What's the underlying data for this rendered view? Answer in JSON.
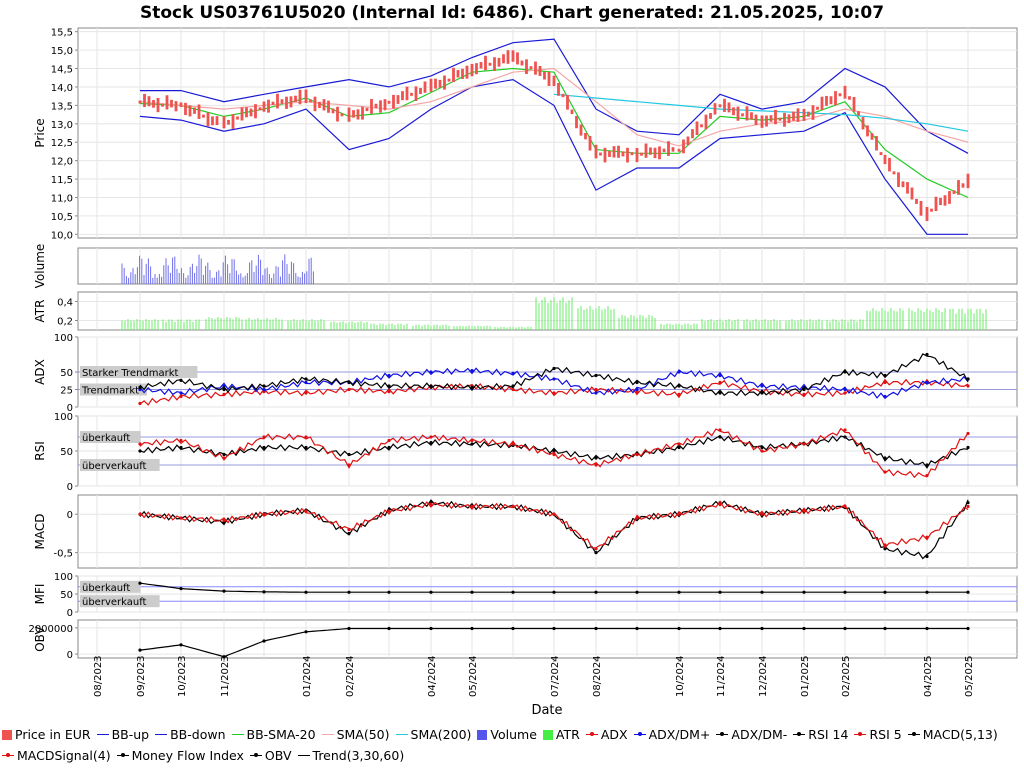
{
  "title": "Stock US03761U5020 (Internal Id: 6486). Chart generated: 21.05.2025, 10:07",
  "x_axis": {
    "label": "Date",
    "ticks": [
      "08/2023",
      "09/2023",
      "10/2023",
      "11/2023",
      "01/2024",
      "02/2024",
      "04/2024",
      "05/2024",
      "07/2024",
      "08/2024",
      "10/2024",
      "11/2024",
      "12/2024",
      "01/2025",
      "02/2025",
      "04/2025",
      "05/2025"
    ]
  },
  "panels": {
    "price": {
      "ylabel": "Price",
      "ticks": [
        "15,5",
        "15,0",
        "14,5",
        "14,0",
        "13,5",
        "13,0",
        "12,5",
        "12,0",
        "11,5",
        "11,0",
        "10,5",
        "10,0"
      ]
    },
    "volume": {
      "ylabel": "Volume"
    },
    "atr": {
      "ylabel": "ATR",
      "ticks": [
        "0,4",
        "0,2"
      ]
    },
    "adx": {
      "ylabel": "ADX",
      "ticks": [
        "100",
        "50",
        "25",
        "0"
      ],
      "annotations": [
        "Starker Trendmarkt",
        "Trendmarkt"
      ]
    },
    "rsi": {
      "ylabel": "RSI",
      "ticks": [
        "100",
        "50",
        "0"
      ],
      "annotations": [
        "überkauft",
        "überverkauft"
      ]
    },
    "macd": {
      "ylabel": "MACD",
      "ticks": [
        "0",
        "-0,5"
      ]
    },
    "mfi": {
      "ylabel": "MFI",
      "ticks": [
        "100",
        "50",
        "0"
      ],
      "annotations": [
        "überkauft",
        "überverkauft"
      ]
    },
    "obv": {
      "ylabel": "OBV",
      "ticks": [
        "2000000",
        "0"
      ]
    }
  },
  "legend": [
    {
      "label": "Price in EUR",
      "type": "box",
      "color": "#ef5350"
    },
    {
      "label": "BB-up",
      "type": "line",
      "color": "#1a1ad6"
    },
    {
      "label": "BB-down",
      "type": "line",
      "color": "#1a1ad6"
    },
    {
      "label": "BB-SMA-20",
      "type": "line",
      "color": "#22cc22"
    },
    {
      "label": "SMA(50)",
      "type": "line",
      "color": "#f4a6a6"
    },
    {
      "label": "SMA(200)",
      "type": "line",
      "color": "#22c8e0"
    },
    {
      "label": "Volume",
      "type": "box",
      "color": "#5555ee"
    },
    {
      "label": "ATR",
      "type": "box",
      "color": "#44ee44"
    },
    {
      "label": "ADX",
      "type": "dotline",
      "color": "#e01010"
    },
    {
      "label": "ADX/DM+",
      "type": "dotline",
      "color": "#1010e0"
    },
    {
      "label": "ADX/DM-",
      "type": "dotline",
      "color": "#000000"
    },
    {
      "label": "RSI 14",
      "type": "dotline",
      "color": "#000000"
    },
    {
      "label": "RSI 5",
      "type": "dotline",
      "color": "#e01010"
    },
    {
      "label": "MACD(5,13)",
      "type": "dotline",
      "color": "#000000"
    },
    {
      "label": "MACDSignal(4)",
      "type": "dotline",
      "color": "#e01010"
    },
    {
      "label": "Money Flow Index",
      "type": "dotline",
      "color": "#000000"
    },
    {
      "label": "OBV",
      "type": "dotline",
      "color": "#000000"
    },
    {
      "label": "Trend(3,30,60)",
      "type": "line",
      "color": "#000000"
    }
  ],
  "chart_data": [
    {
      "type": "line",
      "panel": "price",
      "ylabel": "Price",
      "ylim": [
        9.9,
        15.6
      ],
      "x": [
        "2023-09",
        "2023-10",
        "2023-11",
        "2023-12",
        "2024-01",
        "2024-02",
        "2024-03",
        "2024-04",
        "2024-05",
        "2024-06",
        "2024-07",
        "2024-08",
        "2024-09",
        "2024-10",
        "2024-11",
        "2024-12",
        "2025-01",
        "2025-02",
        "2025-03",
        "2025-04",
        "2025-05"
      ],
      "series": [
        {
          "name": "Price in EUR",
          "values": [
            13.6,
            13.5,
            13.0,
            13.5,
            13.7,
            13.2,
            13.6,
            14.0,
            14.5,
            14.8,
            14.2,
            12.2,
            12.2,
            12.3,
            13.5,
            13.1,
            13.2,
            13.9,
            12.0,
            10.6,
            11.4
          ]
        },
        {
          "name": "BB-up",
          "values": [
            13.9,
            13.9,
            13.6,
            13.8,
            14.0,
            14.2,
            14.0,
            14.3,
            14.8,
            15.2,
            15.3,
            13.4,
            12.8,
            12.7,
            13.8,
            13.4,
            13.6,
            14.5,
            14.0,
            12.8,
            12.2
          ]
        },
        {
          "name": "BB-down",
          "values": [
            13.2,
            13.1,
            12.8,
            13.0,
            13.4,
            12.3,
            12.6,
            13.4,
            14.0,
            14.2,
            13.5,
            11.2,
            11.8,
            11.8,
            12.6,
            12.7,
            12.8,
            13.3,
            11.5,
            10.0,
            10.0
          ]
        },
        {
          "name": "BB-SMA-20",
          "values": [
            13.55,
            13.5,
            13.2,
            13.4,
            13.7,
            13.2,
            13.3,
            13.85,
            14.4,
            14.5,
            14.4,
            12.3,
            12.2,
            12.2,
            13.2,
            13.1,
            13.2,
            13.6,
            12.3,
            11.5,
            11.0
          ]
        },
        {
          "name": "SMA(50)",
          "values": [
            13.6,
            13.5,
            13.4,
            13.5,
            13.6,
            13.5,
            13.4,
            13.6,
            14.0,
            14.4,
            14.5,
            13.6,
            12.7,
            12.4,
            12.8,
            13.0,
            13.1,
            13.4,
            13.2,
            12.8,
            12.5
          ]
        },
        {
          "name": "SMA(200)",
          "values": [
            null,
            null,
            null,
            null,
            null,
            null,
            null,
            null,
            null,
            null,
            13.8,
            13.7,
            13.6,
            13.5,
            13.4,
            13.35,
            13.3,
            13.25,
            13.15,
            13.0,
            12.8
          ]
        }
      ]
    },
    {
      "type": "bar",
      "panel": "atr",
      "ylabel": "ATR",
      "ylim": [
        0.1,
        0.5
      ],
      "x": [
        "2023-09",
        "2023-10",
        "2023-11",
        "2023-12",
        "2024-01",
        "2024-02",
        "2024-03",
        "2024-04",
        "2024-05",
        "2024-06",
        "2024-07",
        "2024-08",
        "2024-09",
        "2024-10",
        "2024-11",
        "2024-12",
        "2025-01",
        "2025-02",
        "2025-03",
        "2025-04",
        "2025-05"
      ],
      "values": [
        0.2,
        0.2,
        0.22,
        0.21,
        0.2,
        0.18,
        0.16,
        0.15,
        0.14,
        0.13,
        0.4,
        0.32,
        0.24,
        0.16,
        0.2,
        0.2,
        0.2,
        0.2,
        0.3,
        0.3,
        0.3
      ]
    },
    {
      "type": "line",
      "panel": "adx",
      "ylabel": "ADX",
      "ylim": [
        0,
        100
      ],
      "x": [
        "2023-09",
        "2023-10",
        "2023-11",
        "2023-12",
        "2024-01",
        "2024-02",
        "2024-03",
        "2024-04",
        "2024-05",
        "2024-06",
        "2024-07",
        "2024-08",
        "2024-09",
        "2024-10",
        "2024-11",
        "2024-12",
        "2025-01",
        "2025-02",
        "2025-03",
        "2025-04",
        "2025-05"
      ],
      "series": [
        {
          "name": "ADX",
          "values": [
            5,
            15,
            18,
            22,
            20,
            25,
            22,
            28,
            30,
            25,
            20,
            25,
            22,
            18,
            35,
            22,
            18,
            20,
            35,
            35,
            30
          ]
        },
        {
          "name": "ADX/DM+",
          "values": [
            25,
            20,
            30,
            25,
            35,
            35,
            45,
            50,
            52,
            48,
            40,
            20,
            25,
            50,
            45,
            30,
            28,
            25,
            15,
            35,
            40
          ]
        },
        {
          "name": "ADX/DM-",
          "values": [
            28,
            38,
            25,
            30,
            40,
            35,
            30,
            30,
            28,
            30,
            55,
            45,
            35,
            30,
            20,
            20,
            25,
            50,
            45,
            75,
            40
          ]
        }
      ]
    },
    {
      "type": "line",
      "panel": "rsi",
      "ylabel": "RSI",
      "ylim": [
        0,
        100
      ],
      "x": [
        "2023-09",
        "2023-10",
        "2023-11",
        "2023-12",
        "2024-01",
        "2024-02",
        "2024-03",
        "2024-04",
        "2024-05",
        "2024-06",
        "2024-07",
        "2024-08",
        "2024-09",
        "2024-10",
        "2024-11",
        "2024-12",
        "2025-01",
        "2025-02",
        "2025-03",
        "2025-04",
        "2025-05"
      ],
      "series": [
        {
          "name": "RSI 14",
          "values": [
            50,
            55,
            45,
            55,
            55,
            45,
            55,
            62,
            60,
            58,
            50,
            40,
            45,
            55,
            70,
            55,
            60,
            70,
            40,
            30,
            55
          ]
        },
        {
          "name": "RSI 5",
          "values": [
            60,
            65,
            40,
            70,
            70,
            30,
            65,
            70,
            65,
            60,
            45,
            30,
            45,
            60,
            80,
            50,
            60,
            80,
            20,
            15,
            75
          ]
        }
      ]
    },
    {
      "type": "line",
      "panel": "macd",
      "ylabel": "MACD",
      "ylim": [
        -0.7,
        0.25
      ],
      "x": [
        "2023-09",
        "2023-10",
        "2023-11",
        "2023-12",
        "2024-01",
        "2024-02",
        "2024-03",
        "2024-04",
        "2024-05",
        "2024-06",
        "2024-07",
        "2024-08",
        "2024-09",
        "2024-10",
        "2024-11",
        "2024-12",
        "2025-01",
        "2025-02",
        "2025-03",
        "2025-04",
        "2025-05"
      ],
      "series": [
        {
          "name": "MACD(5,13)",
          "values": [
            0.0,
            -0.05,
            -0.1,
            0.0,
            0.05,
            -0.25,
            0.05,
            0.15,
            0.1,
            0.1,
            0.0,
            -0.5,
            -0.05,
            0.0,
            0.15,
            0.0,
            0.05,
            0.1,
            -0.45,
            -0.55,
            0.15
          ]
        },
        {
          "name": "MACDSignal(4)",
          "values": [
            0.0,
            -0.05,
            -0.08,
            0.0,
            0.04,
            -0.2,
            0.04,
            0.13,
            0.1,
            0.1,
            0.0,
            -0.45,
            -0.05,
            0.0,
            0.13,
            0.0,
            0.04,
            0.1,
            -0.4,
            -0.3,
            0.1
          ]
        }
      ]
    },
    {
      "type": "line",
      "panel": "mfi",
      "ylabel": "MFI",
      "ylim": [
        0,
        100
      ],
      "x": [
        "2023-09",
        "2023-10",
        "2023-11",
        "2023-12",
        "2024-01",
        "2024-02",
        "2024-03",
        "2024-04",
        "2024-05",
        "2024-06",
        "2024-07",
        "2024-08",
        "2024-09",
        "2024-10",
        "2024-11",
        "2024-12",
        "2025-01",
        "2025-02",
        "2025-03",
        "2025-04",
        "2025-05"
      ],
      "series": [
        {
          "name": "Money Flow Index",
          "values": [
            80,
            65,
            58,
            56,
            55,
            55,
            55,
            55,
            55,
            55,
            55,
            55,
            55,
            55,
            55,
            55,
            55,
            55,
            55,
            55,
            55
          ]
        }
      ]
    },
    {
      "type": "line",
      "panel": "obv",
      "ylabel": "OBV",
      "ylim": [
        -300000,
        2600000
      ],
      "x": [
        "2023-09",
        "2023-10",
        "2023-11",
        "2023-12",
        "2024-01",
        "2024-02",
        "2024-03",
        "2024-04",
        "2024-05",
        "2024-06",
        "2024-07",
        "2024-08",
        "2024-09",
        "2024-10",
        "2024-11",
        "2024-12",
        "2025-01",
        "2025-02",
        "2025-03",
        "2025-04",
        "2025-05"
      ],
      "series": [
        {
          "name": "OBV",
          "values": [
            300000,
            700000,
            -200000,
            1000000,
            1700000,
            1950000,
            1950000,
            1950000,
            1950000,
            1950000,
            1950000,
            1950000,
            1950000,
            1950000,
            1950000,
            1950000,
            1950000,
            1950000,
            1950000,
            1950000,
            1950000
          ]
        }
      ]
    }
  ]
}
